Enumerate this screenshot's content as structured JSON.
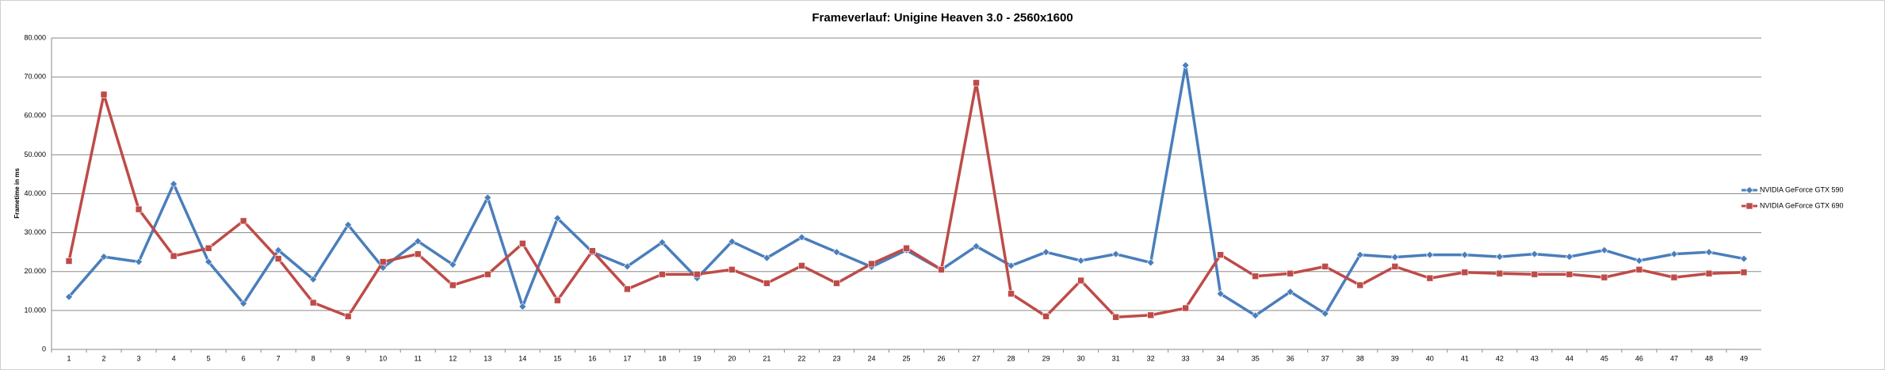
{
  "chart_data": {
    "type": "line",
    "title": "Frameverlauf: Unigine Heaven 3.0 - 2560x1600",
    "y_label": "Frametime in ms",
    "categories": [
      "1",
      "2",
      "3",
      "4",
      "5",
      "6",
      "7",
      "8",
      "9",
      "10",
      "11",
      "12",
      "13",
      "14",
      "15",
      "16",
      "17",
      "18",
      "19",
      "20",
      "21",
      "22",
      "23",
      "24",
      "25",
      "26",
      "27",
      "28",
      "29",
      "30",
      "31",
      "32",
      "33",
      "34",
      "35",
      "36",
      "37",
      "38",
      "39",
      "40",
      "41",
      "42",
      "43",
      "44",
      "45",
      "46",
      "47",
      "48",
      "49"
    ],
    "series": [
      {
        "name": "NVIDIA GeForce GTX 590",
        "color": "#4a7ebb",
        "marker": "diamond",
        "values": [
          13.5,
          23.8,
          22.5,
          42.5,
          22.5,
          11.8,
          25.5,
          18,
          32,
          21,
          27.8,
          21.8,
          39,
          11,
          33.7,
          25,
          21.3,
          27.5,
          18.3,
          27.7,
          23.5,
          28.8,
          25,
          21.2,
          25.5,
          20.5,
          26.5,
          21.5,
          25,
          22.8,
          24.5,
          22.3,
          73,
          14.3,
          8.7,
          14.8,
          9.2,
          24.3,
          23.7,
          24.3,
          24.3,
          23.8,
          24.5,
          23.8,
          25.5,
          22.8,
          24.5,
          25,
          23.3
        ]
      },
      {
        "name": "NVIDIA GeForce GTX 690",
        "color": "#be4b48",
        "marker": "square",
        "values": [
          22.7,
          65.5,
          36,
          24,
          26,
          33,
          23.3,
          12,
          8.5,
          22.5,
          24.5,
          16.5,
          19.3,
          27.2,
          12.6,
          25.3,
          15.5,
          19.3,
          19.3,
          20.5,
          17,
          21.5,
          17,
          22,
          26,
          20.5,
          68.5,
          14.3,
          8.5,
          17.7,
          8.3,
          8.8,
          10.6,
          24.3,
          18.8,
          19.5,
          21.3,
          16.5,
          21.3,
          18.3,
          19.8,
          19.5,
          19.3,
          19.3,
          18.5,
          20.5,
          18.5,
          19.5,
          19.8
        ]
      }
    ],
    "ylim": [
      0,
      80
    ],
    "yticks": [
      0,
      {
        "value": 10,
        "label": "10.000"
      },
      {
        "value": 20,
        "label": "20.000"
      },
      {
        "value": 30,
        "label": "30.000"
      },
      {
        "value": 40,
        "label": "40.000"
      },
      {
        "value": 50,
        "label": "50.000"
      },
      {
        "value": 60,
        "label": "60.000"
      },
      {
        "value": 70,
        "label": "70.000"
      },
      {
        "value": 80,
        "label": "80.000"
      }
    ],
    "grid": true,
    "legend": "right"
  }
}
